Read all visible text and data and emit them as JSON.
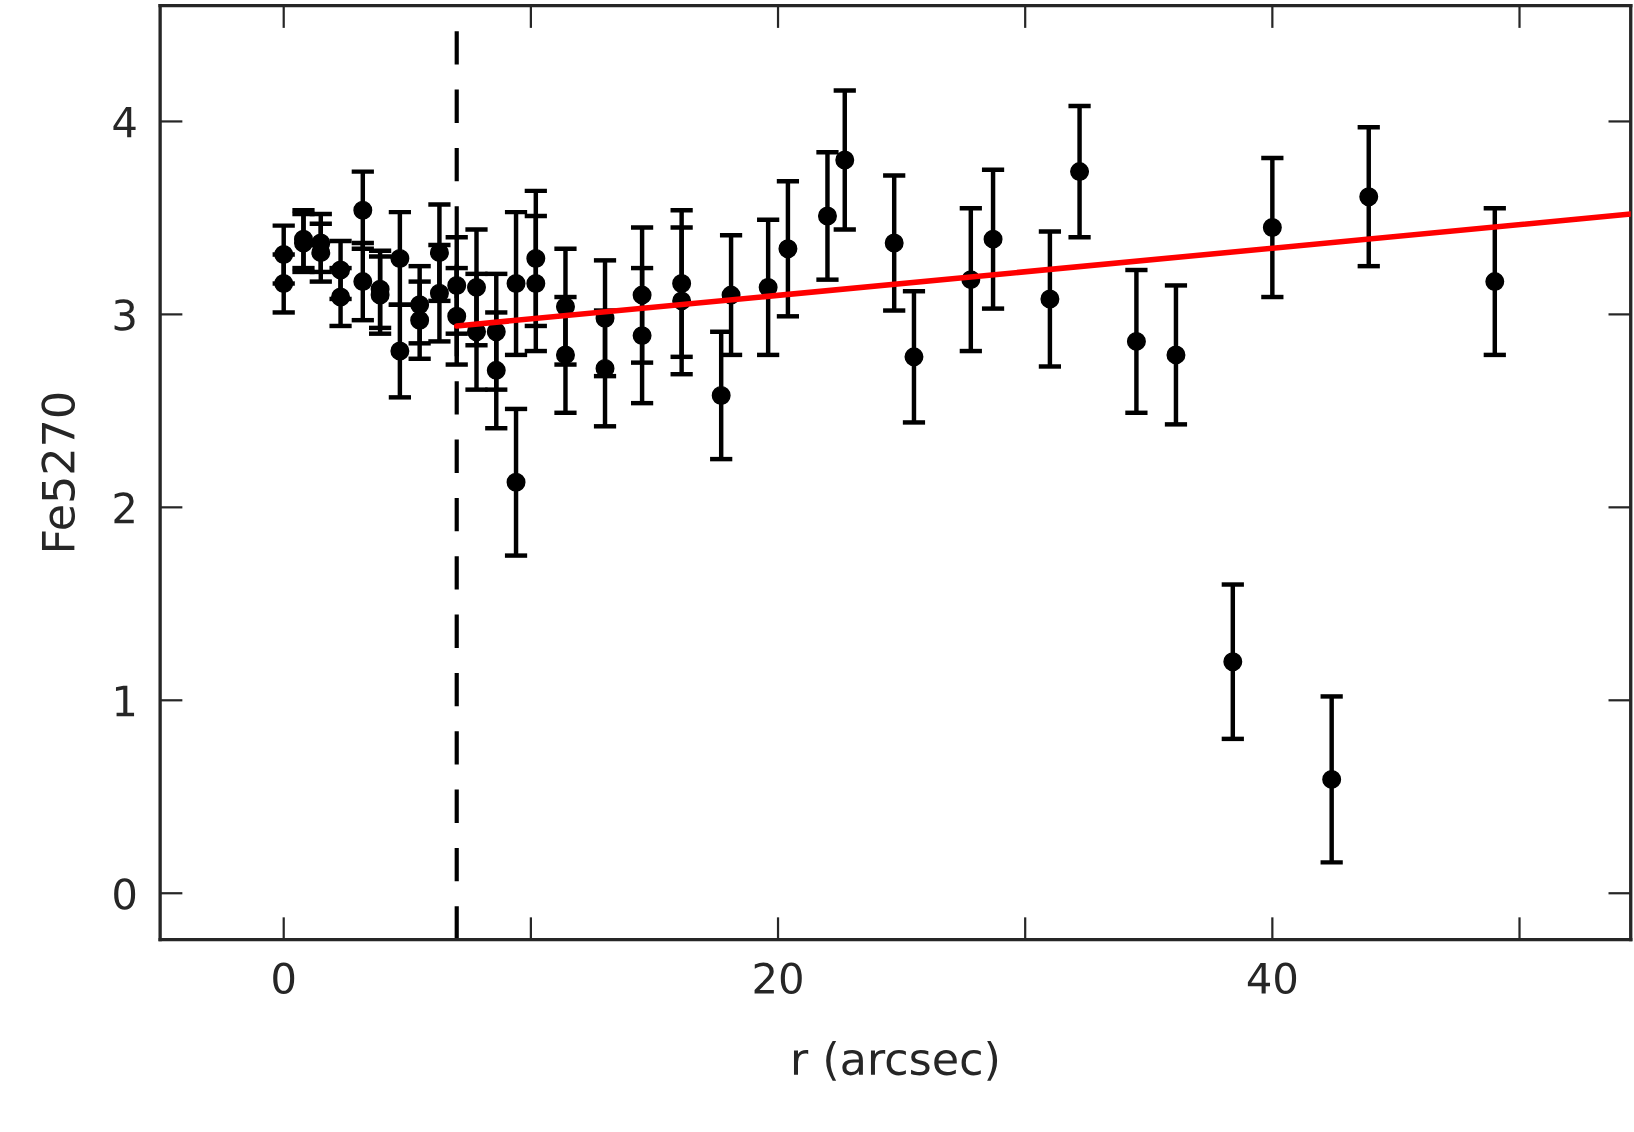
{
  "chart_data": {
    "type": "scatter",
    "xlabel": "r (arcsec)",
    "ylabel": "Fe5270",
    "xlim": [
      -5,
      54.5
    ],
    "ylim": [
      -0.24,
      4.6
    ],
    "xticks": [
      0,
      {
        "value": 10,
        "label": null
      },
      20,
      {
        "value": 30,
        "label": null
      },
      40,
      {
        "value": 50,
        "label": null
      }
    ],
    "yticks": [
      0,
      1,
      2,
      3,
      4
    ],
    "grid": false,
    "ref_lines": [
      {
        "axis": "x",
        "value": 7.0,
        "label": null,
        "color": "#000000",
        "line_style": "dashed"
      }
    ],
    "series": [
      {
        "color": "#000000",
        "marker": "circle",
        "x": [
          0,
          0,
          0.8,
          0.8,
          1.5,
          1.5,
          2.3,
          2.3,
          3.2,
          3.2,
          3.9,
          3.9,
          4.7,
          4.7,
          5.5,
          5.5,
          6.3,
          6.3,
          7.0,
          7.0,
          7.8,
          7.8,
          8.6,
          8.6,
          9.4,
          9.4,
          10.2,
          10.2,
          11.4,
          11.4,
          13.0,
          13.0,
          14.5,
          14.5,
          16.1,
          16.1,
          17.7,
          18.1,
          19.6,
          20.4,
          22.0,
          22.7,
          24.7,
          25.5,
          27.8,
          28.7,
          31.0,
          32.2,
          34.5,
          36.1,
          38.4,
          40.0,
          42.4,
          43.9,
          49.0
        ],
        "values": [
          3.31,
          3.16,
          3.39,
          3.37,
          3.37,
          3.32,
          3.23,
          3.09,
          3.54,
          3.17,
          3.13,
          3.1,
          3.29,
          2.81,
          3.05,
          2.97,
          3.32,
          3.11,
          3.15,
          2.99,
          3.14,
          2.91,
          2.91,
          2.71,
          3.16,
          2.13,
          3.29,
          3.16,
          3.04,
          2.79,
          2.98,
          2.72,
          3.1,
          2.89,
          3.16,
          3.07,
          2.58,
          3.1,
          3.14,
          3.34,
          3.51,
          3.8,
          3.37,
          2.78,
          3.18,
          3.39,
          3.08,
          3.74,
          2.86,
          2.79,
          1.2,
          3.45,
          0.59,
          3.61,
          3.17
        ],
        "errors": [
          0.15,
          0.15,
          0.15,
          0.15,
          0.15,
          0.15,
          0.15,
          0.15,
          0.2,
          0.2,
          0.2,
          0.2,
          0.24,
          0.24,
          0.2,
          0.2,
          0.25,
          0.25,
          0.25,
          0.25,
          0.3,
          0.3,
          0.3,
          0.3,
          0.37,
          0.38,
          0.35,
          0.35,
          0.3,
          0.3,
          0.3,
          0.3,
          0.35,
          0.35,
          0.38,
          0.38,
          0.33,
          0.31,
          0.35,
          0.35,
          0.33,
          0.36,
          0.35,
          0.34,
          0.37,
          0.36,
          0.35,
          0.34,
          0.37,
          0.36,
          0.4,
          0.36,
          0.43,
          0.36,
          0.38
        ]
      },
      {
        "type": "line",
        "marker": "none",
        "color": "#ff0000",
        "x": [
          7.0,
          54.5
        ],
        "values": [
          2.94,
          3.52
        ]
      }
    ]
  }
}
